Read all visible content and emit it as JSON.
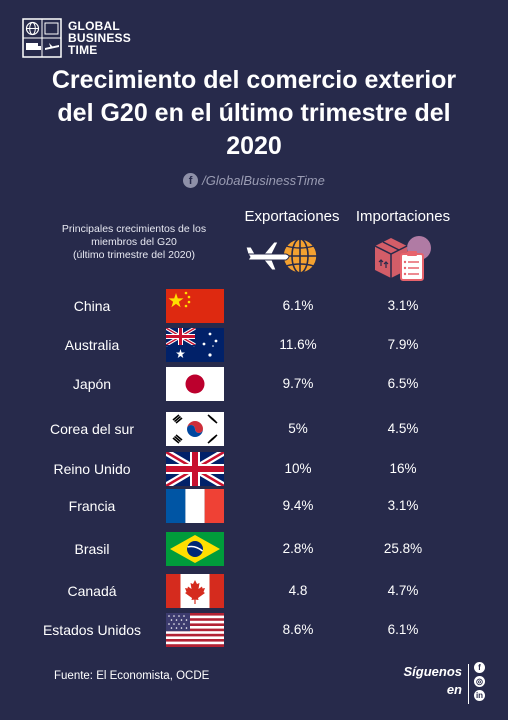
{
  "brand": {
    "line1": "GLOBAL",
    "line2": "BUSINESS",
    "line3": "TIME"
  },
  "title": {
    "line1": "Crecimiento del comercio exterior",
    "line2": "del G20 en el último trimestre del",
    "line3": "2020"
  },
  "social_handle": "/GlobalBusinessTime",
  "subtitle": {
    "line1": "Principales crecimientos de los",
    "line2": "miembros del G20",
    "line3": "(último trimestre del 2020)"
  },
  "columns": {
    "exports": "Exportaciones",
    "imports": "Importaciones"
  },
  "footer": {
    "source": "Fuente: El Economista, OCDE",
    "follow1": "Síguenos",
    "follow2": "en",
    "icons": [
      "facebook-icon",
      "instagram-icon",
      "linkedin-icon"
    ]
  },
  "colors": {
    "background": "#272a4b",
    "accent_orange": "#f4a130",
    "accent_pink": "#e7636c"
  },
  "chart_data": {
    "type": "table",
    "title": "Crecimiento del comercio exterior del G20 en el último trimestre del 2020",
    "columns": [
      "Exportaciones",
      "Importaciones"
    ],
    "rows": [
      {
        "country": "China",
        "flag": "cn",
        "exports": "6.1%",
        "imports": "3.1%"
      },
      {
        "country": "Australia",
        "flag": "au",
        "exports": "11.6%",
        "imports": "7.9%"
      },
      {
        "country": "Japón",
        "flag": "jp",
        "exports": "9.7%",
        "imports": "6.5%"
      },
      {
        "country": "Corea del sur",
        "flag": "kr",
        "exports": "5%",
        "imports": "4.5%"
      },
      {
        "country": "Reino Unido",
        "flag": "gb",
        "exports": "10%",
        "imports": "16%"
      },
      {
        "country": "Francia",
        "flag": "fr",
        "exports": "9.4%",
        "imports": "3.1%"
      },
      {
        "country": "Brasil",
        "flag": "br",
        "exports": "2.8%",
        "imports": "25.8%"
      },
      {
        "country": "Canadá",
        "flag": "ca",
        "exports": "4.8",
        "imports": "4.7%"
      },
      {
        "country": "Estados Unidos",
        "flag": "us",
        "exports": "8.6%",
        "imports": "6.1%"
      }
    ]
  }
}
